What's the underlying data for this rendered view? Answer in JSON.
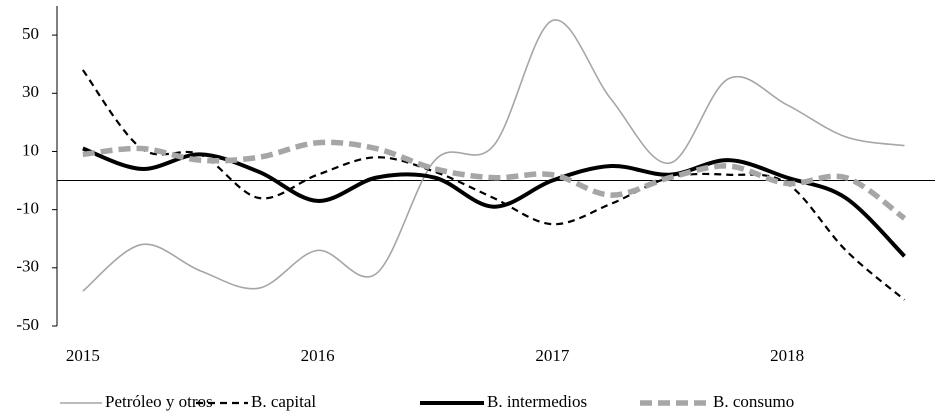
{
  "chart_data": {
    "type": "line",
    "x": [
      2015,
      2015.25,
      2015.5,
      2015.75,
      2016,
      2016.25,
      2016.5,
      2016.75,
      2017,
      2017.25,
      2017.5,
      2017.75,
      2018,
      2018.25,
      2018.5
    ],
    "xlim": [
      2014.89,
      2018.63
    ],
    "xticks": [
      2015,
      2016,
      2017,
      2018
    ],
    "ylim": [
      -50,
      60
    ],
    "yticks": [
      50,
      30,
      10,
      -10,
      -30,
      -50
    ],
    "series": [
      {
        "name": "Petróleo y otros",
        "color": "#a6a6a6",
        "dashed": false,
        "values": [
          -38,
          -22,
          -31,
          -37,
          -24,
          -32,
          7,
          12,
          55,
          28,
          6,
          35,
          26,
          15,
          12
        ]
      },
      {
        "name": "B. capital",
        "color": "#000000",
        "dashed": true,
        "values": [
          38,
          11,
          9,
          -6,
          2,
          8,
          3,
          -6,
          -15,
          -8,
          1,
          2,
          -1,
          -24,
          -41
        ]
      },
      {
        "name": "B. intermedios",
        "color": "#000000",
        "dashed": false,
        "values": [
          11,
          4,
          9,
          3,
          -7,
          1,
          1,
          -9,
          0,
          5,
          2,
          7,
          1,
          -6,
          -26
        ]
      },
      {
        "name": "B. consumo",
        "color": "#a6a6a6",
        "dashed": true,
        "values": [
          9,
          11,
          7,
          8,
          13,
          11,
          4,
          1,
          2,
          -5,
          1,
          5,
          -1,
          1,
          -13
        ]
      }
    ]
  }
}
